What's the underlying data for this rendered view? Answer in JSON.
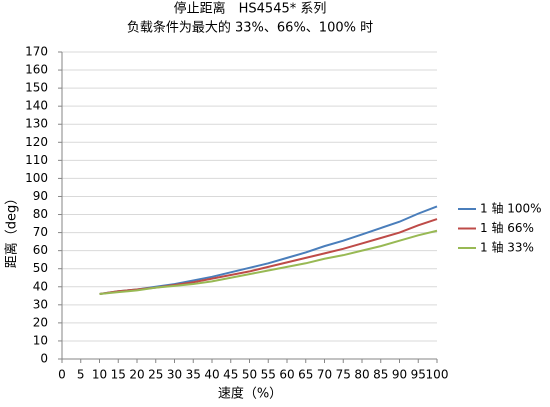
{
  "chart_data": {
    "type": "line",
    "title": "停止距离　HS4545* 系列",
    "subtitle": "负载条件为最大的 33%、66%、100% 时",
    "x_label": "速度（%）",
    "y_label": "距离（deg）",
    "x": [
      10,
      15,
      20,
      25,
      30,
      35,
      40,
      45,
      50,
      55,
      60,
      65,
      70,
      75,
      80,
      85,
      90,
      95,
      100
    ],
    "series": [
      {
        "name": "1 轴 100%",
        "color": "#4a7ebb",
        "values": [
          36,
          37.5,
          38.5,
          40,
          41.5,
          43.5,
          45.5,
          48,
          50.5,
          53,
          56,
          59,
          62.5,
          65.5,
          69,
          72.5,
          76,
          80.5,
          84.5
        ]
      },
      {
        "name": "1 轴 66%",
        "color": "#be4b48",
        "values": [
          36,
          37.5,
          38.5,
          39.5,
          41,
          42.5,
          44.5,
          46.5,
          48.5,
          51,
          53.5,
          56,
          58.5,
          61,
          64,
          67,
          70,
          74,
          77.5
        ]
      },
      {
        "name": "1 轴 33%",
        "color": "#98b954",
        "values": [
          36,
          37,
          38,
          39.5,
          40.5,
          41.5,
          43,
          45,
          47,
          49,
          51,
          53,
          55.5,
          57.5,
          60,
          62.5,
          65.5,
          68.5,
          71
        ]
      }
    ],
    "xlim": [
      0,
      100
    ],
    "xticks": [
      0,
      5,
      10,
      15,
      20,
      25,
      30,
      35,
      40,
      45,
      50,
      55,
      60,
      65,
      70,
      75,
      80,
      85,
      90,
      95,
      100
    ],
    "ylim": [
      0,
      170
    ],
    "yticks": [
      0,
      10,
      20,
      30,
      40,
      50,
      60,
      70,
      80,
      90,
      100,
      110,
      120,
      130,
      140,
      150,
      160,
      170
    ],
    "grid": true,
    "legend": "right"
  }
}
